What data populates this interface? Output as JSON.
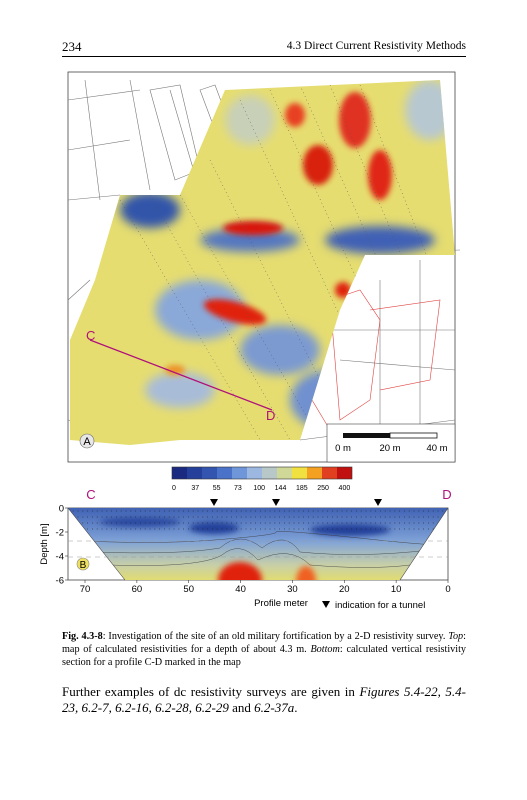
{
  "header": {
    "page_number": "234",
    "running_title": "4.3 Direct Current Resistivity Methods"
  },
  "figure": {
    "map": {
      "point_c": "C",
      "point_d": "D",
      "panel": "A",
      "scale_labels": [
        "0 m",
        "20 m",
        "40 m"
      ]
    },
    "colorbar_ticks": [
      "0",
      "37",
      "55",
      "73",
      "100",
      "144",
      "185",
      "250",
      "400"
    ],
    "section": {
      "point_c": "C",
      "point_d": "D",
      "panel": "B",
      "y_label": "Depth [m]",
      "y_ticks": [
        "0",
        "-2",
        "-4",
        "-6"
      ],
      "x_ticks": [
        "70",
        "60",
        "50",
        "40",
        "30",
        "20",
        "10",
        "0"
      ],
      "x_label": "Profile meter",
      "legend": "indication for a tunnel"
    }
  },
  "caption": {
    "label": "Fig. 4.3-8",
    "part1": ": Investigation of the site of an old military fortification by a 2-D resistivity survey. ",
    "top": "Top",
    "part2": ": map of calculated resistivities for a depth of about 4.3 m. ",
    "bottom": "Bottom",
    "part3": ": calculated vertical resistivity section for a profile C-D marked in the map"
  },
  "paragraph": {
    "text1": "Further examples of dc resistivity surveys are given in ",
    "refs1": "Figures 5.4-22, 5.4-23, 6.2-7, 6.2-16, 6.2-28, 6.2-29",
    "text2": " and ",
    "refs2": "6.2-37a",
    "text3": "."
  }
}
